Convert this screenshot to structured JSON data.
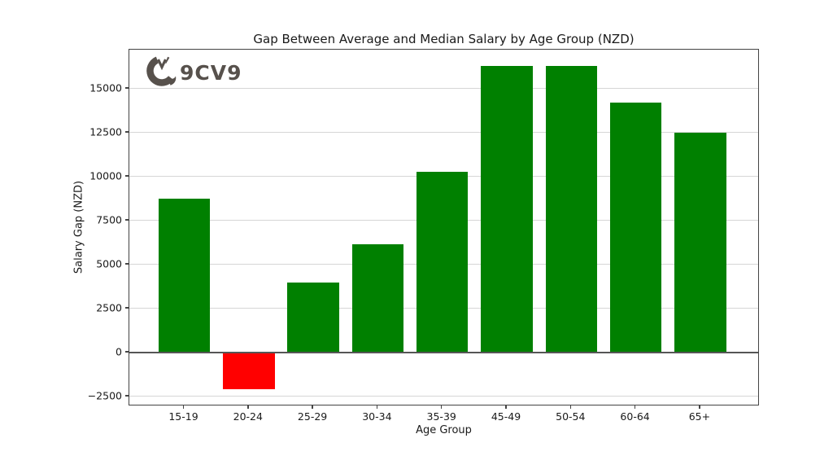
{
  "logo": {
    "text": "9CV9"
  },
  "chart_data": {
    "type": "bar",
    "title": "Gap Between Average and Median Salary by Age Group (NZD)",
    "xlabel": "Age Group",
    "ylabel": "Salary Gap (NZD)",
    "categories": [
      "15-19",
      "20-24",
      "25-29",
      "30-34",
      "35-39",
      "45-49",
      "50-54",
      "60-64",
      "65+"
    ],
    "values": [
      8750,
      -2100,
      4000,
      6150,
      10280,
      16300,
      16300,
      14200,
      12500
    ],
    "positive_color": "#008000",
    "negative_color": "#ff0000",
    "yticks": [
      -2500,
      0,
      2500,
      5000,
      7500,
      10000,
      12500,
      15000
    ],
    "ylim": [
      -3056,
      17222
    ],
    "grid": true,
    "zero_line": true,
    "legend": "none"
  }
}
